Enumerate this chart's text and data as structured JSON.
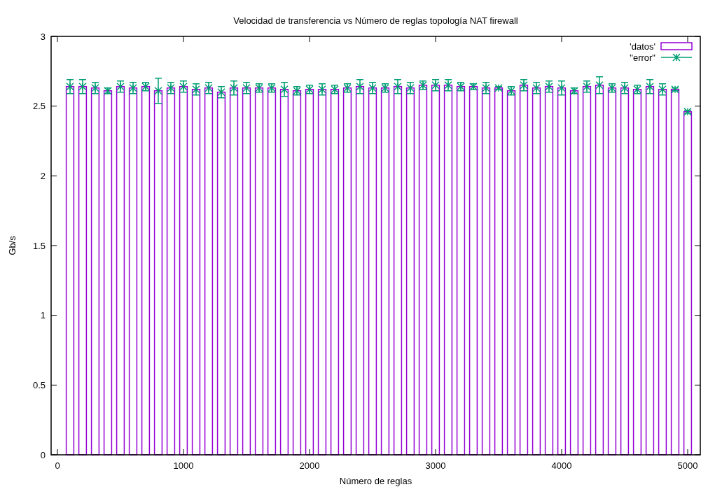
{
  "chart_data": {
    "type": "bar",
    "title": "Velocidad de transferencia vs Número de reglas topología NAT firewall",
    "xlabel": "Número de reglas",
    "ylabel": "Gb/s",
    "x": [
      100,
      200,
      300,
      400,
      500,
      600,
      700,
      800,
      900,
      1000,
      1100,
      1200,
      1300,
      1400,
      1500,
      1600,
      1700,
      1800,
      1900,
      2000,
      2100,
      2200,
      2300,
      2400,
      2500,
      2600,
      2700,
      2800,
      2900,
      3000,
      3100,
      3200,
      3300,
      3400,
      3500,
      3600,
      3700,
      3800,
      3900,
      4000,
      4100,
      4200,
      4300,
      4400,
      4500,
      4600,
      4700,
      4800,
      4900,
      5000
    ],
    "series": [
      {
        "name": "'datos'",
        "color": "#9400d3",
        "values": [
          2.64,
          2.64,
          2.63,
          2.61,
          2.64,
          2.63,
          2.64,
          2.61,
          2.63,
          2.64,
          2.62,
          2.63,
          2.6,
          2.63,
          2.63,
          2.63,
          2.63,
          2.62,
          2.61,
          2.62,
          2.62,
          2.62,
          2.63,
          2.64,
          2.63,
          2.63,
          2.64,
          2.63,
          2.65,
          2.65,
          2.65,
          2.64,
          2.64,
          2.63,
          2.63,
          2.61,
          2.65,
          2.63,
          2.64,
          2.63,
          2.61,
          2.64,
          2.65,
          2.63,
          2.63,
          2.62,
          2.64,
          2.62,
          2.62,
          2.46
        ]
      },
      {
        "name": "\"error\"",
        "type": "scatter",
        "marker": "cross",
        "color": "#009e73",
        "values": [
          2.64,
          2.64,
          2.63,
          2.61,
          2.64,
          2.63,
          2.64,
          2.61,
          2.63,
          2.64,
          2.62,
          2.63,
          2.6,
          2.63,
          2.63,
          2.63,
          2.63,
          2.62,
          2.61,
          2.62,
          2.62,
          2.62,
          2.63,
          2.64,
          2.63,
          2.63,
          2.64,
          2.63,
          2.65,
          2.65,
          2.65,
          2.64,
          2.64,
          2.63,
          2.63,
          2.61,
          2.65,
          2.63,
          2.64,
          2.63,
          2.61,
          2.64,
          2.65,
          2.63,
          2.63,
          2.62,
          2.64,
          2.62,
          2.62,
          2.46
        ],
        "errors": [
          0.05,
          0.05,
          0.04,
          0.02,
          0.04,
          0.04,
          0.03,
          0.09,
          0.04,
          0.04,
          0.04,
          0.04,
          0.04,
          0.05,
          0.04,
          0.03,
          0.03,
          0.05,
          0.03,
          0.03,
          0.04,
          0.03,
          0.03,
          0.05,
          0.04,
          0.03,
          0.05,
          0.04,
          0.03,
          0.04,
          0.04,
          0.03,
          0.02,
          0.04,
          0.01,
          0.03,
          0.04,
          0.04,
          0.04,
          0.05,
          0.02,
          0.04,
          0.06,
          0.03,
          0.04,
          0.03,
          0.05,
          0.04,
          0.01,
          0.01
        ]
      }
    ],
    "xlim": [
      -50,
      5100
    ],
    "xticks": [
      0,
      1000,
      2000,
      3000,
      4000,
      5000
    ],
    "ylim": [
      0,
      3
    ],
    "yticks": [
      0,
      0.5,
      1,
      1.5,
      2,
      2.5,
      3
    ],
    "legend": "top right"
  }
}
